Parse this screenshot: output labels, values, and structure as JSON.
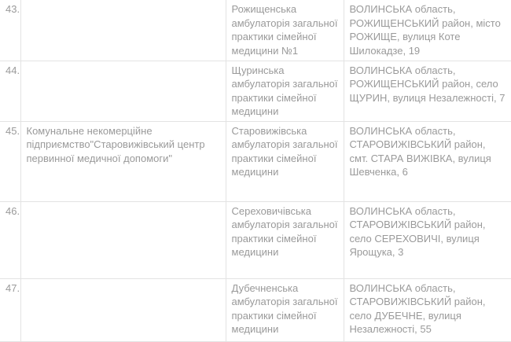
{
  "rows": [
    {
      "num": "43.",
      "org": "",
      "name": "Рожищенська амбулаторія загальної практики сімейної медицини №1",
      "address": "ВОЛИНСЬКА область, РОЖИЩЕНСЬКИЙ район, місто РОЖИЩЕ, вулиця Коте Шилокадзе, 19"
    },
    {
      "num": "44.",
      "org": "",
      "name": "Щуринська амбулаторія загальної практики сімейної медицини",
      "address": "ВОЛИНСЬКА область, РОЖИЩЕНСЬКИЙ район, село ЩУРИН, вулиця Незалежності, 7"
    },
    {
      "num": "45.",
      "org": "Комунальне некомерційне підприємство\"Старовижівський центр первинної медичної допомоги\"",
      "name": "Старовижівська амбулаторія загальної практики сімейної медицини",
      "address": "ВОЛИНСЬКА область, СТАРОВИЖІВСЬКИЙ район, смт. СТАРА ВИЖІВКА, вулиця Шевченка, 6"
    },
    {
      "num": "46.",
      "org": "",
      "name": "Сереховичівська амбулаторія загальної практики сімейної медицини",
      "address": "ВОЛИНСЬКА область, СТАРОВИЖІВСЬКИЙ район, село СЕРЕХОВИЧІ, вулиця Ярощука, 3"
    },
    {
      "num": "47.",
      "org": "",
      "name": "Дубечненська амбулаторія загальної практики сімейної медицини",
      "address": "ВОЛИНСЬКА область, СТАРОВИЖІВСЬКИЙ район, село ДУБЕЧНЕ, вулиця Незалежності, 55"
    }
  ]
}
